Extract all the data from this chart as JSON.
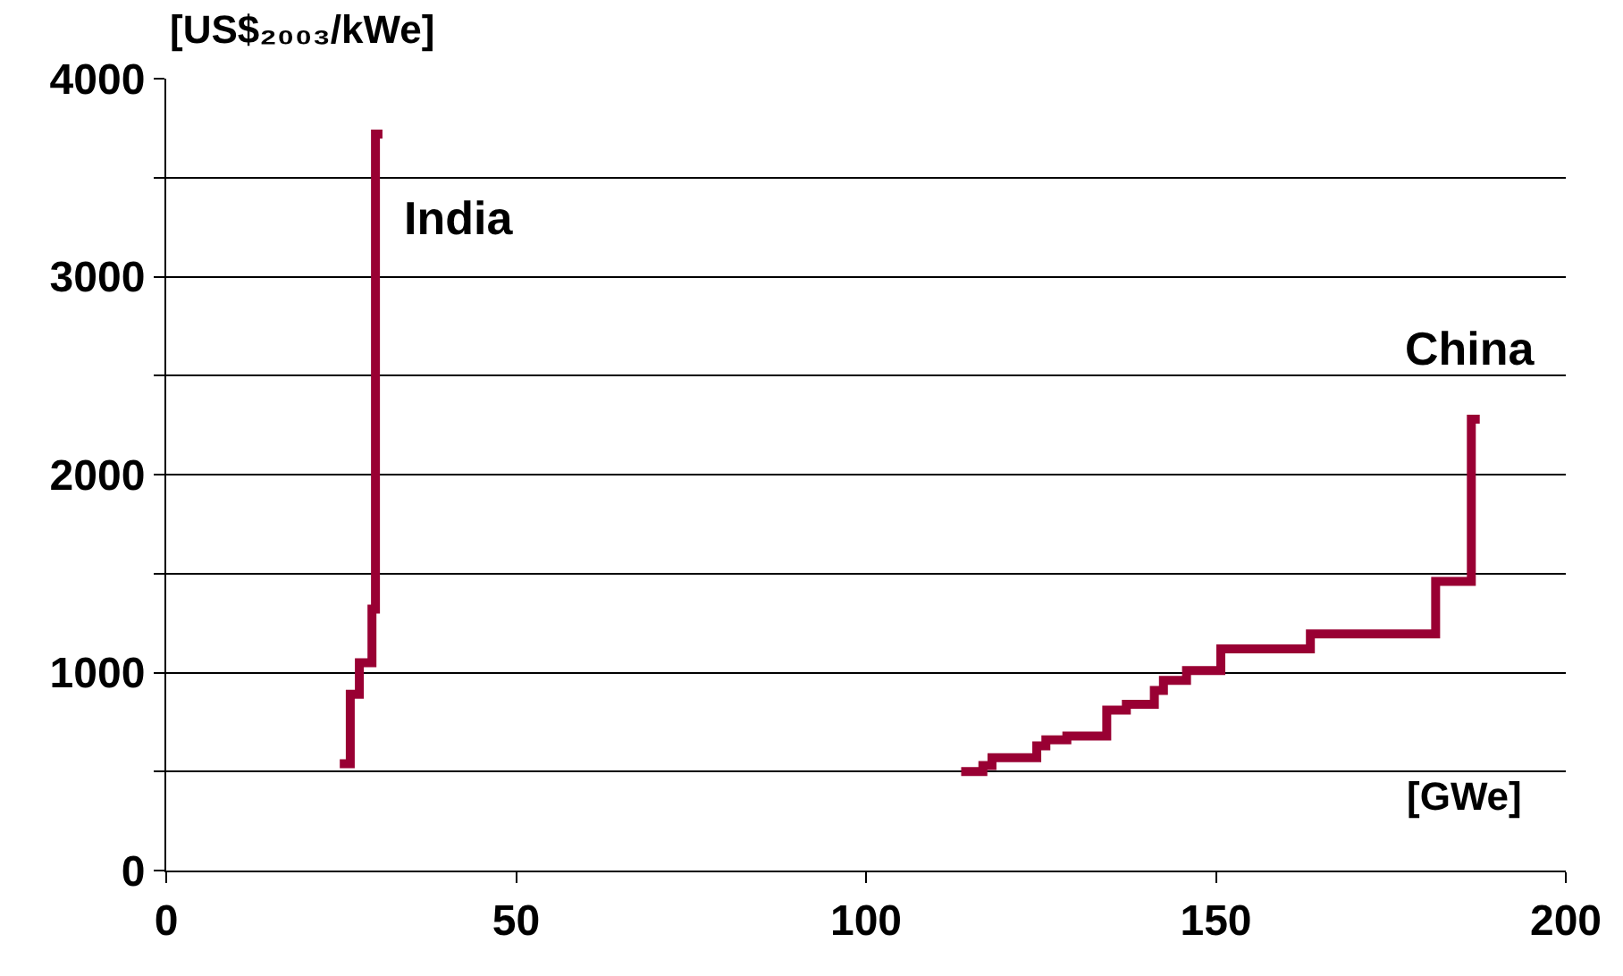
{
  "chart_data": {
    "type": "step",
    "xlabel": "[GWe]",
    "ylabel": "[US$₂₀₀₃/kWe]",
    "xlim": [
      0,
      200
    ],
    "xticks": [
      0,
      50,
      100,
      150,
      200
    ],
    "ylim": [
      0,
      4000
    ],
    "yticks": [
      0,
      {
        "value": 500,
        "label": null
      },
      1000,
      {
        "value": 1500,
        "label": null
      },
      2000,
      {
        "value": 2500,
        "label": null
      },
      3000,
      {
        "value": 3500,
        "label": null
      },
      4000
    ],
    "grid": "y",
    "legend": false,
    "series": [
      {
        "name": "India",
        "color": "#990033",
        "x": [
          24.8,
          26.3,
          27.6,
          29.4,
          29.9,
          30.9
        ],
        "values": [
          540,
          890,
          1050,
          1320,
          3720,
          3720
        ]
      },
      {
        "name": "China",
        "color": "#990033",
        "x": [
          113.6,
          116.7,
          118,
          124.4,
          125.7,
          128.7,
          134.4,
          137.2,
          141.2,
          142.5,
          145.8,
          150.7,
          163.5,
          181.4,
          186.5,
          187.7
        ],
        "values": [
          500,
          530,
          570,
          630,
          660,
          680,
          810,
          840,
          910,
          960,
          1010,
          1120,
          1195,
          1460,
          2280,
          2280
        ]
      }
    ]
  }
}
